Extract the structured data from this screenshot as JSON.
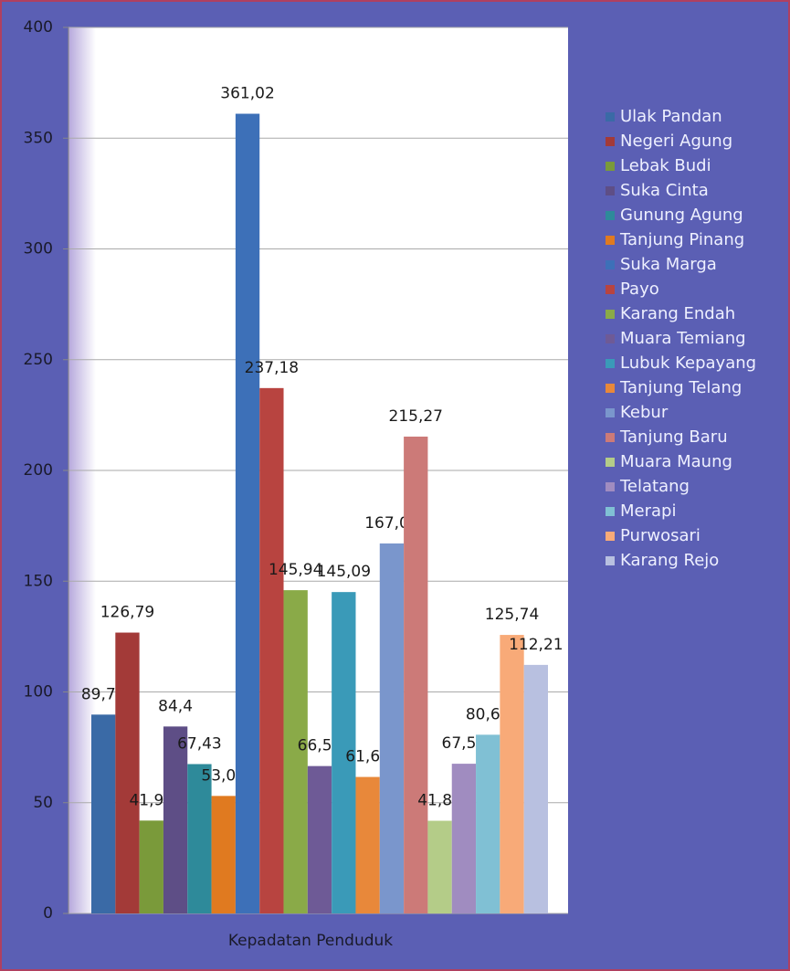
{
  "chart_data": {
    "type": "bar",
    "categories": [
      "Kepadatan Penduduk"
    ],
    "series": [
      {
        "name": "Ulak Pandan",
        "color": "#3a6aa6",
        "values": [
          89.77
        ],
        "value_labels": [
          "89,77"
        ]
      },
      {
        "name": "Negeri Agung",
        "color": "#a33a38",
        "values": [
          126.79
        ],
        "value_labels": [
          "126,79"
        ]
      },
      {
        "name": "Lebak Budi",
        "color": "#7a9a3a",
        "values": [
          41.93
        ],
        "value_labels": [
          "41,93"
        ]
      },
      {
        "name": "Suka Cinta",
        "color": "#5e4e86",
        "values": [
          84.4
        ],
        "value_labels": [
          "84,4"
        ]
      },
      {
        "name": "Gunung Agung",
        "color": "#2e8a9a",
        "values": [
          67.43
        ],
        "value_labels": [
          "67,43"
        ]
      },
      {
        "name": "Tanjung Pinang",
        "color": "#e07a20",
        "values": [
          53.05
        ],
        "value_labels": [
          "53,05"
        ]
      },
      {
        "name": "Suka Marga",
        "color": "#3d70b8",
        "values": [
          361.02
        ],
        "value_labels": [
          "361,02"
        ]
      },
      {
        "name": "Payo",
        "color": "#b84440",
        "values": [
          237.18
        ],
        "value_labels": [
          "237,18"
        ]
      },
      {
        "name": "Karang Endah",
        "color": "#8aaa48",
        "values": [
          145.94
        ],
        "value_labels": [
          "145,94"
        ]
      },
      {
        "name": "Muara Temiang",
        "color": "#6e5a96",
        "values": [
          66.54
        ],
        "value_labels": [
          "66,54"
        ]
      },
      {
        "name": "Lubuk Kepayang",
        "color": "#3a9ab8",
        "values": [
          145.09
        ],
        "value_labels": [
          "145,09"
        ]
      },
      {
        "name": "Tanjung Telang",
        "color": "#e8883a",
        "values": [
          61.62
        ],
        "value_labels": [
          "61,62"
        ]
      },
      {
        "name": "Kebur",
        "color": "#7a96cc",
        "values": [
          167.04
        ],
        "value_labels": [
          "167,04"
        ]
      },
      {
        "name": "Tanjung Baru",
        "color": "#cc7a78",
        "values": [
          215.27
        ],
        "value_labels": [
          "215,27"
        ]
      },
      {
        "name": "Muara Maung",
        "color": "#b4cc88",
        "values": [
          41.84
        ],
        "value_labels": [
          "41,84"
        ]
      },
      {
        "name": "Telatang",
        "color": "#a08cc0",
        "values": [
          67.59
        ],
        "value_labels": [
          "67,59"
        ]
      },
      {
        "name": "Merapi",
        "color": "#80c0d4",
        "values": [
          80.68
        ],
        "value_labels": [
          "80,68"
        ]
      },
      {
        "name": "Purwosari",
        "color": "#f8aa78",
        "values": [
          125.74
        ],
        "value_labels": [
          "125,74"
        ]
      },
      {
        "name": "Karang Rejo",
        "color": "#b8c0e0",
        "values": [
          112.21
        ],
        "value_labels": [
          "112,21"
        ]
      }
    ],
    "ylim": [
      0,
      400
    ],
    "yticks": [
      0,
      50,
      100,
      150,
      200,
      250,
      300,
      350,
      400
    ],
    "grid": true,
    "legend": "right"
  }
}
